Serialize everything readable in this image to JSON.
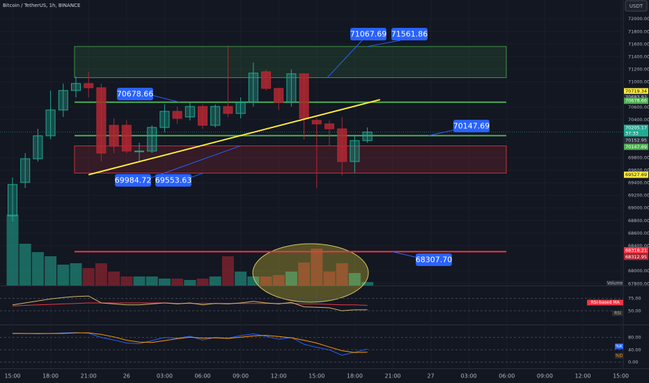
{
  "chart_data": [
    {
      "type": "candlestick",
      "title": "Bitcoin / TetherUS, 1h, BINANCE",
      "currency": "USDT",
      "categories": [
        "15:00",
        null,
        null,
        "18:00",
        null,
        null,
        "21:00",
        null,
        null,
        "26",
        null,
        null,
        "03:00",
        null,
        null,
        "06:00",
        null,
        null,
        "09:00",
        null,
        null,
        "12:00",
        null,
        null,
        "15:00",
        null,
        null,
        "18:00",
        null,
        null,
        "21:00",
        null,
        null,
        "27",
        null,
        null,
        "03:00",
        null,
        null,
        "06:00",
        null,
        null,
        "09:00",
        null,
        null,
        "12:00",
        null,
        null,
        "15:00"
      ],
      "open": [
        68875,
        69406,
        69781,
        70146,
        70555,
        70864,
        70975,
        70908,
        70312,
        70312,
        69892,
        69903,
        70278,
        70533,
        70444,
        70610,
        70312,
        70610,
        70500,
        70676,
        71162,
        70897,
        70676,
        71129,
        70389,
        70334,
        70256,
        69737,
        70069,
        null,
        null,
        null,
        null,
        null,
        null,
        null,
        null,
        null,
        null,
        null,
        null,
        null,
        null,
        null,
        null,
        null,
        null,
        null,
        null
      ],
      "high": [
        69483,
        69870,
        70256,
        70864,
        70975,
        71085,
        71162,
        70975,
        70422,
        70389,
        70035,
        70312,
        70643,
        70610,
        70676,
        70643,
        70643,
        71582,
        70754,
        71306,
        71196,
        70908,
        71196,
        71140,
        70422,
        70389,
        70444,
        70146,
        70278,
        null,
        null,
        null,
        null,
        null,
        null,
        null,
        null,
        null,
        null,
        null,
        null,
        null,
        null,
        null,
        null,
        null,
        null,
        null,
        null
      ],
      "low": [
        68787,
        69317,
        69737,
        70091,
        70444,
        70754,
        70754,
        69737,
        69870,
        69870,
        69737,
        69870,
        70201,
        70334,
        70389,
        70256,
        70278,
        70444,
        70422,
        70610,
        70864,
        70555,
        70610,
        70091,
        69317,
        69980,
        69516,
        69560,
        70035,
        null,
        null,
        null,
        null,
        null,
        null,
        null,
        null,
        null,
        null,
        null,
        null,
        null,
        null,
        null,
        null,
        null,
        null,
        null,
        null
      ],
      "close": [
        69372,
        69781,
        70146,
        70555,
        70864,
        70975,
        70908,
        69870,
        69980,
        69903,
        69903,
        70278,
        70533,
        70422,
        70610,
        70312,
        70610,
        70500,
        70676,
        71140,
        70897,
        70676,
        71129,
        70422,
        70334,
        70256,
        69737,
        70069,
        70205.17,
        null,
        null,
        null,
        null,
        null,
        null,
        null,
        null,
        null,
        null,
        null,
        null,
        null,
        null,
        null,
        null,
        null,
        null,
        null,
        null
      ],
      "up_color": "#22ab94",
      "down_color": "#b22833",
      "volume_label": "Volume",
      "volume": [
        102,
        60,
        48,
        42,
        30,
        32,
        25,
        32,
        20,
        13,
        13,
        13,
        10,
        10,
        8,
        10,
        13,
        42,
        20,
        13,
        13,
        15,
        20,
        33,
        53,
        20,
        32,
        18,
        5,
        null,
        null,
        null,
        null,
        null,
        null,
        null,
        null,
        null,
        null,
        null,
        null,
        null,
        null,
        null,
        null,
        null,
        null,
        null,
        null
      ],
      "volume_ylim": [
        0,
        200
      ],
      "ylim": [
        67770,
        72300
      ],
      "yticks": [
        {
          "value": 67800,
          "label": "67800.00"
        },
        {
          "value": 68000,
          "label": "68000.00"
        },
        {
          "value": 68400,
          "label": "68400.00"
        },
        {
          "value": 68600,
          "label": "68600.00"
        },
        {
          "value": 68800,
          "label": "68800.00"
        },
        {
          "value": 69000,
          "label": "69000.00"
        },
        {
          "value": 69200,
          "label": "69200.00"
        },
        {
          "value": 69400,
          "label": "69400.00"
        },
        {
          "value": 69600,
          "label": "69600.00"
        },
        {
          "value": 69800,
          "label": "69800.00"
        },
        {
          "value": 70400,
          "label": "70400.00"
        },
        {
          "value": 70600,
          "label": "70600.00"
        },
        {
          "value": 71000,
          "label": "71000.00"
        },
        {
          "value": 71200,
          "label": "71200.00"
        },
        {
          "value": 71400,
          "label": "71400.00"
        },
        {
          "value": 71600,
          "label": "71600.00"
        },
        {
          "value": 71800,
          "label": "71800.00"
        },
        {
          "value": 72000,
          "label": "72000.00"
        }
      ],
      "zones": [
        {
          "top": 71561.86,
          "bottom": 71067.69,
          "color": "#4caf50"
        },
        {
          "top": 69984.72,
          "bottom": 69553.63,
          "color": "#f23645"
        }
      ],
      "levels": [
        {
          "value": 70678.66,
          "color": "#4caf50"
        },
        {
          "value": 70147.69,
          "color": "#4caf50"
        },
        {
          "value": 68307.7,
          "label": "68307.70",
          "color": "#f23645"
        }
      ],
      "trendline": {
        "start": 69527.69,
        "end": 70719.34,
        "color": "#ffeb3b"
      },
      "last_price_countdown": "37:33",
      "price_tags": [
        {
          "value": 70683.92,
          "color": "#2a2e39"
        },
        {
          "value": 70152.95,
          "color": "#2a2e39"
        },
        {
          "value": 68318.21,
          "color": "#f23645"
        },
        {
          "value": 68312.95,
          "color": "#b22833"
        }
      ]
    },
    {
      "type": "line",
      "ylim": [
        23.5,
        98.5
      ],
      "yticks": [
        {
          "value": 50,
          "label": "50.00"
        },
        {
          "value": 75,
          "label": "75.00"
        }
      ],
      "series": [
        {
          "name": "RSI-based MA",
          "color": "#f23645",
          "values": [
            60,
            61,
            62,
            63,
            64,
            65,
            66,
            66,
            66,
            66,
            66,
            66,
            66,
            65,
            65,
            65,
            65,
            65,
            65,
            65,
            65,
            65,
            65,
            64,
            64,
            63,
            62,
            62,
            61,
            null,
            null,
            null,
            null,
            null,
            null,
            null,
            null,
            null,
            null,
            null,
            null,
            null,
            null,
            null,
            null,
            null,
            null,
            null,
            null
          ]
        },
        {
          "name": "RSI",
          "color": "#d6b86a",
          "values": [
            62,
            66,
            70,
            74,
            77,
            79,
            80,
            66,
            64,
            62,
            62,
            64,
            66,
            64,
            66,
            62,
            65,
            64,
            66,
            69,
            66,
            64,
            67,
            58,
            57,
            56,
            50,
            52,
            52,
            null,
            null,
            null,
            null,
            null,
            null,
            null,
            null,
            null,
            null,
            null,
            null,
            null,
            null,
            null,
            null,
            null,
            null,
            null,
            null
          ]
        }
      ]
    },
    {
      "type": "line",
      "ylim": [
        -16,
        120
      ],
      "yticks": [
        {
          "value": 0,
          "label": "0.00"
        },
        {
          "value": 40,
          "label": "40.00"
        },
        {
          "value": 80,
          "label": "80.00"
        }
      ],
      "series": [
        {
          "name": "%K",
          "color": "#2962ff",
          "values": [
            94,
            93,
            92,
            93,
            95,
            96,
            94,
            80,
            72,
            62,
            60,
            70,
            80,
            78,
            84,
            72,
            80,
            78,
            86,
            92,
            84,
            74,
            80,
            58,
            48,
            40,
            22,
            32,
            42,
            null,
            null,
            null,
            null,
            null,
            null,
            null,
            null,
            null,
            null,
            null,
            null,
            null,
            null,
            null,
            null,
            null,
            null,
            null,
            null
          ]
        },
        {
          "name": "%D",
          "color": "#ff9800",
          "values": [
            93,
            93,
            93,
            93,
            93,
            95,
            95,
            90,
            82,
            71,
            65,
            64,
            70,
            76,
            81,
            78,
            79,
            77,
            81,
            85,
            87,
            83,
            79,
            71,
            62,
            49,
            37,
            31,
            32,
            null,
            null,
            null,
            null,
            null,
            null,
            null,
            null,
            null,
            null,
            null,
            null,
            null,
            null,
            null,
            null,
            null,
            null,
            null,
            null
          ]
        }
      ]
    }
  ]
}
